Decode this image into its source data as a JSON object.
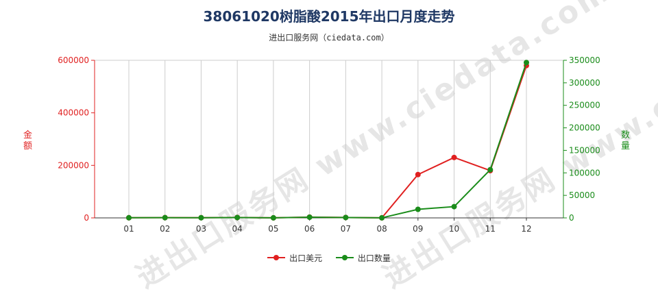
{
  "title": "38061020树脂酸2015年出口月度走势",
  "subtitle": "进出口服务网（ciedata.com）",
  "watermark": "进出口服务网 www.ciedata.com",
  "colors": {
    "left_series": "#e02020",
    "right_series": "#1a8c1a",
    "grid": "#cccccc"
  },
  "legend": {
    "position": "bottom-center",
    "items": [
      "出口美元",
      "出口数量"
    ]
  },
  "chart_data": {
    "type": "line",
    "categories": [
      "01",
      "02",
      "03",
      "04",
      "05",
      "06",
      "07",
      "08",
      "09",
      "10",
      "11",
      "12"
    ],
    "y_left": {
      "label": "金额",
      "range": [
        0,
        600000
      ],
      "ticks": [
        "0",
        "200000",
        "400000",
        "600000"
      ]
    },
    "y_right": {
      "label": "数量",
      "range": [
        0,
        350000
      ],
      "ticks": [
        "0",
        "50000",
        "100000",
        "150000",
        "200000",
        "250000",
        "300000",
        "350000"
      ]
    },
    "series": [
      {
        "name": "出口美元",
        "axis": "left",
        "values": [
          500,
          1000,
          800,
          1500,
          200,
          3000,
          1500,
          200,
          165000,
          230000,
          180000,
          580000
        ]
      },
      {
        "name": "出口数量",
        "axis": "right",
        "values": [
          300,
          500,
          400,
          800,
          100,
          1500,
          800,
          100,
          19000,
          25000,
          107000,
          345000
        ]
      }
    ],
    "grid": true
  }
}
